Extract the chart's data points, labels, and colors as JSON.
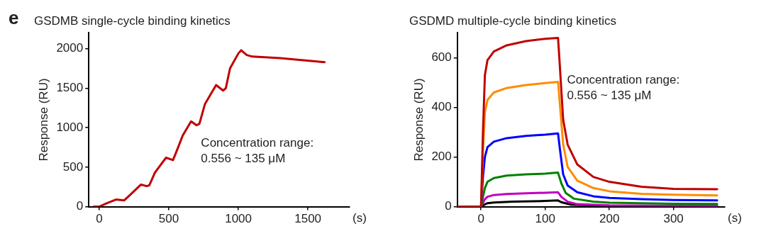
{
  "chart_data": [
    {
      "type": "line",
      "title": "GSDMB single-cycle binding kinetics",
      "xlabel": "(s)",
      "ylabel": "Response (RU)",
      "xlim": [
        -75,
        1800
      ],
      "xticks": [
        0,
        500,
        1000,
        1500
      ],
      "ylim": [
        0,
        2200
      ],
      "yticks": [
        0,
        500,
        1000,
        1500,
        2000
      ],
      "grid": false,
      "legend": false,
      "marker": "none",
      "line_style": "solid",
      "annotations": [
        "e",
        "Concentration range:\n0.556 ~ 135 μM"
      ],
      "series": [
        {
          "color": "#c00000",
          "x": [
            -40,
            0,
            50,
            120,
            180,
            240,
            300,
            340,
            360,
            400,
            480,
            530,
            560,
            600,
            660,
            700,
            720,
            760,
            840,
            890,
            910,
            940,
            1000,
            1020,
            1060,
            1100,
            1300,
            1620
          ],
          "values": [
            0,
            0,
            40,
            90,
            80,
            180,
            280,
            260,
            270,
            430,
            620,
            590,
            720,
            900,
            1080,
            1030,
            1050,
            1300,
            1540,
            1470,
            1500,
            1750,
            1940,
            1980,
            1920,
            1900,
            1880,
            1830
          ]
        }
      ]
    },
    {
      "type": "line",
      "title": "GSDMD multiple-cycle binding kinetics",
      "xlabel": "(s)",
      "ylabel": "Response (RU)",
      "xlim": [
        -37,
        380
      ],
      "xticks": [
        0,
        100,
        200,
        300
      ],
      "ylim": [
        0,
        700
      ],
      "yticks": [
        0,
        200,
        400,
        600
      ],
      "grid": false,
      "legend": false,
      "marker": "none",
      "line_style": "solid",
      "annotations": [
        "Concentration range:\n0.556 ~ 135 μM"
      ],
      "series": [
        {
          "color": "#c00000",
          "x": [
            -35,
            0,
            3,
            6,
            10,
            20,
            40,
            70,
            100,
            120,
            122,
            128,
            135,
            150,
            175,
            200,
            250,
            300,
            368
          ],
          "values": [
            0,
            0,
            300,
            530,
            590,
            625,
            650,
            667,
            676,
            680,
            600,
            350,
            250,
            170,
            120,
            100,
            80,
            72,
            70
          ]
        },
        {
          "color": "#ff8c00",
          "x": [
            -35,
            0,
            3,
            6,
            10,
            20,
            40,
            70,
            100,
            120,
            122,
            128,
            135,
            150,
            175,
            200,
            250,
            300,
            368
          ],
          "values": [
            0,
            0,
            220,
            380,
            430,
            460,
            478,
            490,
            498,
            503,
            440,
            250,
            160,
            105,
            75,
            62,
            52,
            48,
            45
          ]
        },
        {
          "color": "#0000ff",
          "x": [
            -35,
            0,
            3,
            6,
            10,
            20,
            40,
            70,
            100,
            120,
            123,
            128,
            135,
            150,
            175,
            200,
            250,
            300,
            368
          ],
          "values": [
            0,
            0,
            120,
            200,
            240,
            262,
            276,
            285,
            290,
            295,
            230,
            130,
            85,
            58,
            42,
            35,
            30,
            27,
            25
          ]
        },
        {
          "color": "#008000",
          "x": [
            -35,
            0,
            3,
            6,
            10,
            20,
            40,
            70,
            100,
            120,
            125,
            132,
            145,
            175,
            200,
            300,
            368
          ],
          "values": [
            0,
            0,
            40,
            75,
            100,
            115,
            125,
            130,
            133,
            137,
            95,
            55,
            32,
            20,
            16,
            12,
            11
          ]
        },
        {
          "color": "#c000c0",
          "x": [
            -35,
            0,
            3,
            6,
            10,
            20,
            40,
            70,
            100,
            120,
            125,
            135,
            150,
            200,
            368
          ],
          "values": [
            0,
            0,
            15,
            30,
            40,
            47,
            51,
            54,
            56,
            58,
            40,
            20,
            10,
            5,
            3
          ]
        },
        {
          "color": "#000000",
          "x": [
            -35,
            0,
            5,
            10,
            20,
            50,
            100,
            120,
            125,
            140,
            200,
            368
          ],
          "values": [
            0,
            0,
            8,
            14,
            17,
            20,
            23,
            25,
            18,
            8,
            3,
            2
          ]
        }
      ]
    }
  ]
}
